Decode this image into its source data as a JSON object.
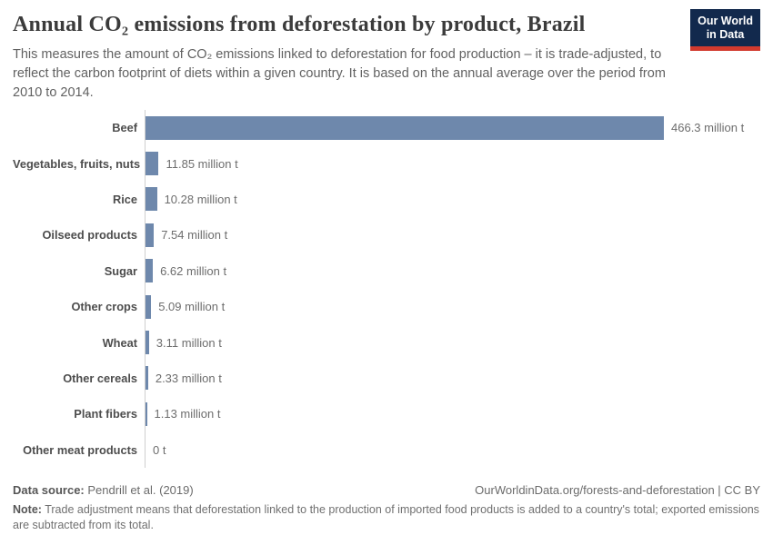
{
  "header": {
    "title": "Annual CO₂ emissions from deforestation by product, Brazil",
    "subtitle": "This measures the amount of CO₂ emissions linked to deforestation for food production – it is trade-adjusted, to reflect the carbon footprint of diets within a given country. It is based on the annual average over the period from 2010 to 2014.",
    "logo": {
      "line1": "Our World",
      "line2": "in Data",
      "bg_color": "#12294d",
      "accent_color": "#d23a2e"
    }
  },
  "chart_data": {
    "type": "bar",
    "orientation": "horizontal",
    "title": "Annual CO₂ emissions from deforestation by product, Brazil",
    "unit": "million t",
    "xlim": [
      0,
      466.3
    ],
    "grid": false,
    "legend": "none",
    "bar_color": "#6e88ac",
    "categories": [
      "Beef",
      "Vegetables, fruits, nuts",
      "Rice",
      "Oilseed products",
      "Sugar",
      "Other crops",
      "Wheat",
      "Other cereals",
      "Plant fibers",
      "Other meat products"
    ],
    "values": [
      466.3,
      11.85,
      10.28,
      7.54,
      6.62,
      5.09,
      3.11,
      2.33,
      1.13,
      0
    ],
    "value_labels": [
      "466.3 million t",
      "11.85 million t",
      "10.28 million t",
      "7.54 million t",
      "6.62 million t",
      "5.09 million t",
      "3.11 million t",
      "2.33 million t",
      "1.13 million t",
      "0 t"
    ]
  },
  "footer": {
    "datasource_label": "Data source:",
    "datasource_value": " Pendrill et al. (2019)",
    "credit": "OurWorldinData.org/forests-and-deforestation | CC BY",
    "note_label": "Note:",
    "note_value": " Trade adjustment means that deforestation linked to the production of imported food products is added to a country's total; exported emissions are subtracted from its total."
  }
}
